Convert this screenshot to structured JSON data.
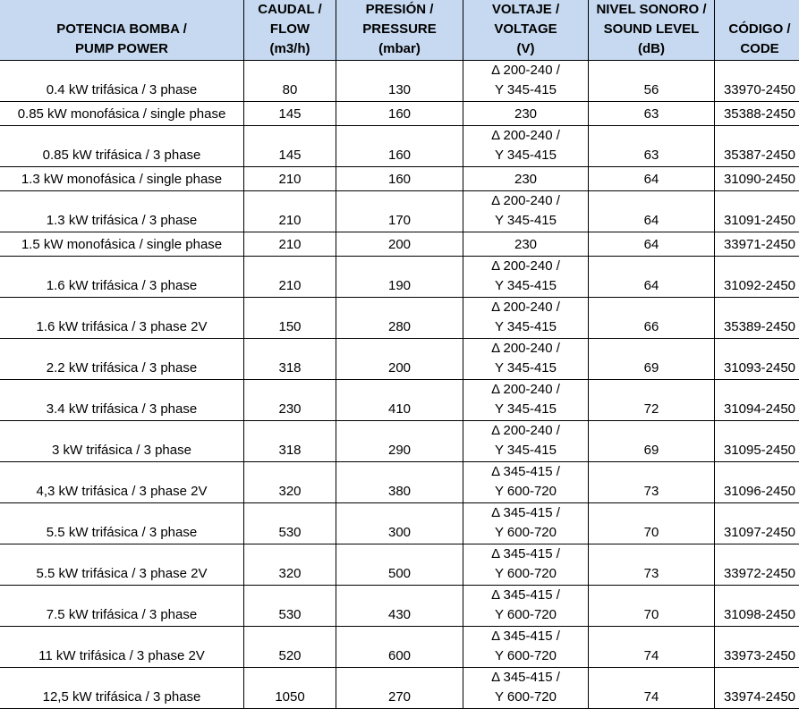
{
  "headers": [
    [
      "POTENCIA BOMBA /",
      "PUMP POWER"
    ],
    [
      "CAUDAL /",
      "FLOW",
      "(m3/h)"
    ],
    [
      "PRESIÓN /",
      "PRESSURE",
      "(mbar)"
    ],
    [
      "VOLTAJE /",
      "VOLTAGE",
      "(V)"
    ],
    [
      "NIVEL SONORO /",
      "SOUND LEVEL",
      "(dB)"
    ],
    [
      "CÓDIGO /",
      "CODE"
    ]
  ],
  "rows": [
    {
      "power": "0.4 kW trifásica / 3 phase",
      "flow": "80",
      "pressure": "130",
      "voltage": [
        "Δ 200-240 /",
        "Y 345-415"
      ],
      "sound": "56",
      "code": "33970-2450"
    },
    {
      "power": "0.85 kW monofásica / single phase",
      "flow": "145",
      "pressure": "160",
      "voltage": [
        "230"
      ],
      "sound": "63",
      "code": "35388-2450"
    },
    {
      "power": "0.85 kW trifásica / 3 phase",
      "flow": "145",
      "pressure": "160",
      "voltage": [
        "Δ 200-240 /",
        "Y 345-415"
      ],
      "sound": "63",
      "code": "35387-2450"
    },
    {
      "power": "1.3 kW monofásica / single phase",
      "flow": "210",
      "pressure": "160",
      "voltage": [
        "230"
      ],
      "sound": "64",
      "code": "31090-2450"
    },
    {
      "power": "1.3 kW trifásica / 3 phase",
      "flow": "210",
      "pressure": "170",
      "voltage": [
        "Δ 200-240 /",
        "Y 345-415"
      ],
      "sound": "64",
      "code": "31091-2450"
    },
    {
      "power": "1.5 kW monofásica / single phase",
      "flow": "210",
      "pressure": "200",
      "voltage": [
        "230"
      ],
      "sound": "64",
      "code": "33971-2450"
    },
    {
      "power": "1.6 kW trifásica / 3 phase",
      "flow": "210",
      "pressure": "190",
      "voltage": [
        "Δ 200-240 /",
        "Y 345-415"
      ],
      "sound": "64",
      "code": "31092-2450"
    },
    {
      "power": "1.6 kW trifásica / 3 phase 2V",
      "flow": "150",
      "pressure": "280",
      "voltage": [
        "Δ 200-240 /",
        "Y 345-415"
      ],
      "sound": "66",
      "code": "35389-2450"
    },
    {
      "power": "2.2 kW trifásica / 3 phase",
      "flow": "318",
      "pressure": "200",
      "voltage": [
        "Δ 200-240 /",
        "Y 345-415"
      ],
      "sound": "69",
      "code": "31093-2450"
    },
    {
      "power": "3.4 kW trifásica / 3 phase",
      "flow": "230",
      "pressure": "410",
      "voltage": [
        "Δ 200-240 /",
        "Y 345-415"
      ],
      "sound": "72",
      "code": "31094-2450"
    },
    {
      "power": "3 kW trifásica / 3 phase",
      "flow": "318",
      "pressure": "290",
      "voltage": [
        "Δ 200-240 /",
        "Y 345-415"
      ],
      "sound": "69",
      "code": "31095-2450"
    },
    {
      "power": "4,3 kW trifásica / 3 phase 2V",
      "flow": "320",
      "pressure": "380",
      "voltage": [
        "Δ 345-415 /",
        "Y 600-720"
      ],
      "sound": "73",
      "code": "31096-2450"
    },
    {
      "power": "5.5 kW trifásica / 3 phase",
      "flow": "530",
      "pressure": "300",
      "voltage": [
        "Δ 345-415 /",
        "Y 600-720"
      ],
      "sound": "70",
      "code": "31097-2450"
    },
    {
      "power": "5.5 kW trifásica / 3 phase 2V",
      "flow": "320",
      "pressure": "500",
      "voltage": [
        "Δ 345-415 /",
        "Y 600-720"
      ],
      "sound": "73",
      "code": "33972-2450"
    },
    {
      "power": "7.5 kW trifásica / 3 phase",
      "flow": "530",
      "pressure": "430",
      "voltage": [
        "Δ 345-415 /",
        "Y 600-720"
      ],
      "sound": "70",
      "code": "31098-2450"
    },
    {
      "power": "11 kW trifásica / 3 phase 2V",
      "flow": "520",
      "pressure": "600",
      "voltage": [
        "Δ 345-415 /",
        "Y 600-720"
      ],
      "sound": "74",
      "code": "33973-2450"
    },
    {
      "power": "12,5 kW trifásica / 3 phase",
      "flow": "1050",
      "pressure": "270",
      "voltage": [
        "Δ 345-415 /",
        "Y 600-720"
      ],
      "sound": "74",
      "code": "33974-2450"
    }
  ]
}
